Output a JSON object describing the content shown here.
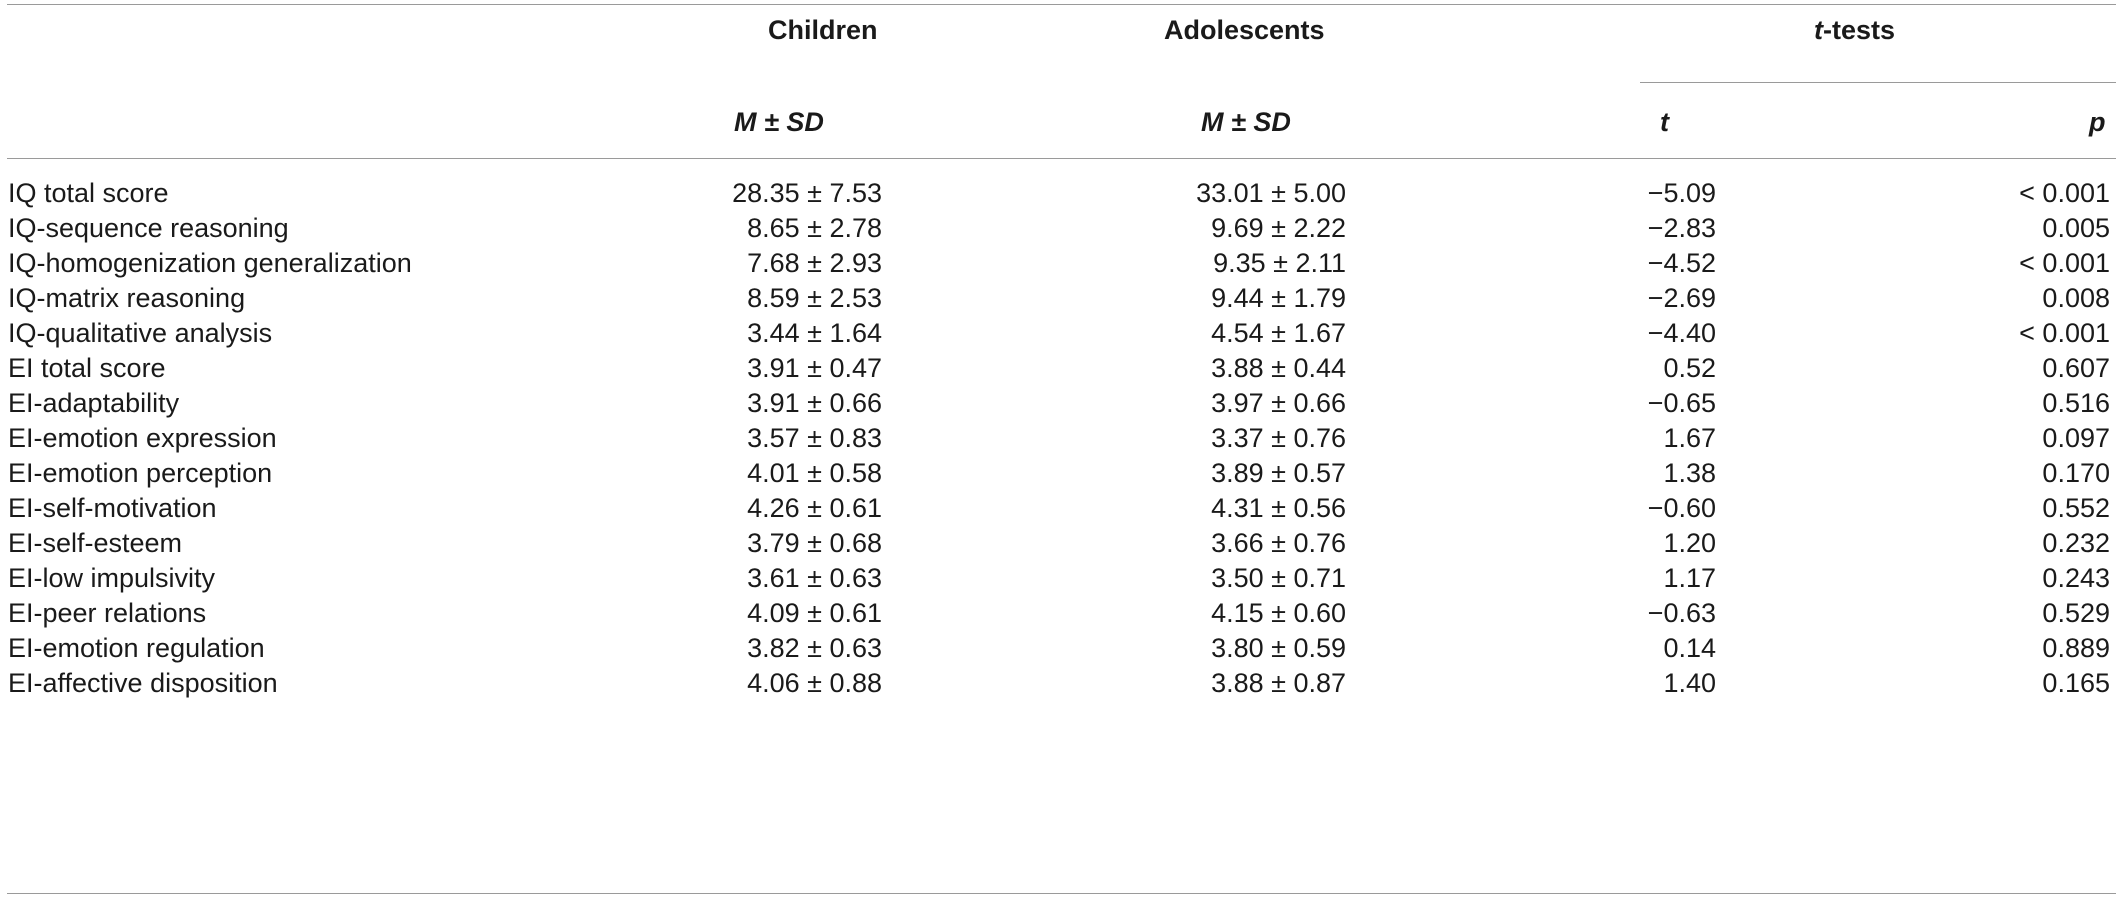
{
  "header": {
    "children": "Children",
    "adolescents": "Adolescents",
    "ttests_italic": "t",
    "ttests_rest": "-tests",
    "children_stat": "M ± SD",
    "adolescents_stat": "M ± SD",
    "t_col": "t",
    "p_col": "p"
  },
  "rows": [
    {
      "label": "IQ total score",
      "children": "28.35 ± 7.53",
      "adolescents": "33.01 ± 5.00",
      "t": "−5.09",
      "p": "< 0.001"
    },
    {
      "label": "IQ-sequence reasoning",
      "children": "8.65 ± 2.78",
      "adolescents": "9.69 ± 2.22",
      "t": "−2.83",
      "p": "0.005"
    },
    {
      "label": "IQ-homogenization generalization",
      "children": "7.68 ± 2.93",
      "adolescents": "9.35 ± 2.11",
      "t": "−4.52",
      "p": "< 0.001"
    },
    {
      "label": "IQ-matrix reasoning",
      "children": "8.59 ± 2.53",
      "adolescents": "9.44 ± 1.79",
      "t": "−2.69",
      "p": "0.008"
    },
    {
      "label": "IQ-qualitative analysis",
      "children": "3.44 ± 1.64",
      "adolescents": "4.54 ± 1.67",
      "t": "−4.40",
      "p": "< 0.001"
    },
    {
      "label": "EI total score",
      "children": "3.91 ± 0.47",
      "adolescents": "3.88 ± 0.44",
      "t": "0.52",
      "p": "0.607"
    },
    {
      "label": "EI-adaptability",
      "children": "3.91 ± 0.66",
      "adolescents": "3.97 ± 0.66",
      "t": "−0.65",
      "p": "0.516"
    },
    {
      "label": "EI-emotion expression",
      "children": "3.57 ± 0.83",
      "adolescents": "3.37 ± 0.76",
      "t": "1.67",
      "p": "0.097"
    },
    {
      "label": "EI-emotion perception",
      "children": "4.01 ± 0.58",
      "adolescents": "3.89 ± 0.57",
      "t": "1.38",
      "p": "0.170"
    },
    {
      "label": "EI-self-motivation",
      "children": "4.26 ± 0.61",
      "adolescents": "4.31 ± 0.56",
      "t": "−0.60",
      "p": "0.552"
    },
    {
      "label": "EI-self-esteem",
      "children": "3.79 ± 0.68",
      "adolescents": "3.66 ± 0.76",
      "t": "1.20",
      "p": "0.232"
    },
    {
      "label": "EI-low impulsivity",
      "children": "3.61 ± 0.63",
      "adolescents": "3.50 ± 0.71",
      "t": "1.17",
      "p": "0.243"
    },
    {
      "label": "EI-peer relations",
      "children": "4.09 ± 0.61",
      "adolescents": "4.15 ± 0.60",
      "t": "−0.63",
      "p": "0.529"
    },
    {
      "label": "EI-emotion regulation",
      "children": "3.82 ± 0.63",
      "adolescents": "3.80 ± 0.59",
      "t": "0.14",
      "p": "0.889"
    },
    {
      "label": "EI-affective disposition",
      "children": "4.06 ± 0.88",
      "adolescents": "3.88 ± 0.87",
      "t": "1.40",
      "p": "0.165"
    }
  ]
}
